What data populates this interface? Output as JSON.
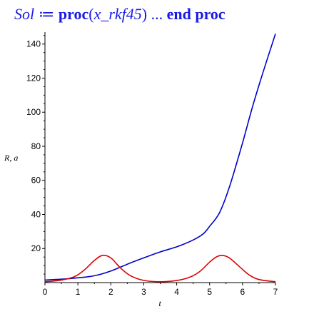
{
  "header": {
    "sol": "Sol",
    "assign": "≔",
    "proc": "proc",
    "open_paren": "(",
    "arg": "x_rkf45",
    "close_paren": ")",
    "ellipsis": "...",
    "end_proc": "end proc"
  },
  "chart_data": {
    "type": "line",
    "xlabel": "t",
    "ylabel": "R, a",
    "xlim": [
      0,
      7
    ],
    "ylim": [
      0,
      147
    ],
    "xticks": [
      0,
      1,
      2,
      3,
      4,
      5,
      6,
      7
    ],
    "yticks": [
      20,
      40,
      60,
      80,
      100,
      120,
      140
    ],
    "grid": false,
    "series": [
      {
        "color": "#0000cc",
        "x": [
          0,
          0.5,
          1,
          1.5,
          2,
          2.5,
          3,
          3.5,
          4,
          4.5,
          4.8,
          5,
          5.3,
          5.6,
          6,
          6.3,
          6.6,
          7
        ],
        "y": [
          1.5,
          2,
          2.8,
          4,
          6.8,
          10.8,
          14.5,
          18,
          21,
          25,
          28.5,
          33,
          41,
          56,
          82,
          103,
          122,
          146
        ]
      },
      {
        "color": "#dd0000",
        "x": [
          0,
          0.5,
          0.9,
          1.2,
          1.5,
          1.75,
          2,
          2.3,
          2.6,
          3,
          3.5,
          4,
          4.4,
          4.7,
          5,
          5.2,
          5.38,
          5.6,
          5.9,
          6.2,
          6.5,
          7
        ],
        "y": [
          0.5,
          1.5,
          3.5,
          7.5,
          13,
          16,
          14.5,
          8.5,
          4,
          1.3,
          0.5,
          1.2,
          3.2,
          6.5,
          12,
          15,
          16,
          14.5,
          9.5,
          4.5,
          1.8,
          0.5
        ]
      }
    ]
  }
}
